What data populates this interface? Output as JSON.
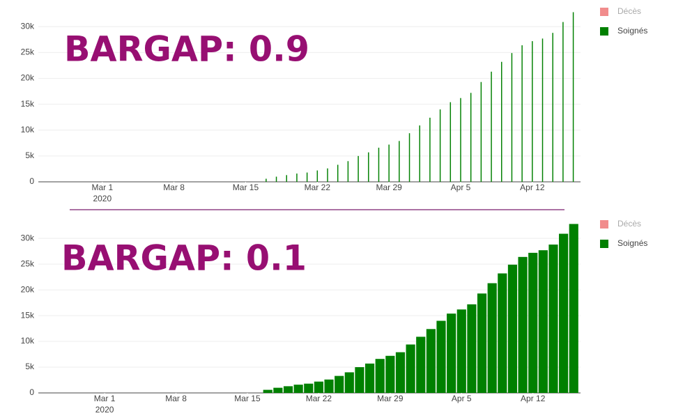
{
  "chart_data": [
    {
      "type": "bar",
      "annotation": "BARGAP: 0.9",
      "bargap": 0.9,
      "grid": true,
      "legend": "right",
      "x": [
        "2020-03-17",
        "2020-03-18",
        "2020-03-19",
        "2020-03-20",
        "2020-03-21",
        "2020-03-22",
        "2020-03-23",
        "2020-03-24",
        "2020-03-25",
        "2020-03-26",
        "2020-03-27",
        "2020-03-28",
        "2020-03-29",
        "2020-03-30",
        "2020-03-31",
        "2020-04-01",
        "2020-04-02",
        "2020-04-03",
        "2020-04-04",
        "2020-04-05",
        "2020-04-06",
        "2020-04-07",
        "2020-04-08",
        "2020-04-09",
        "2020-04-10",
        "2020-04-11",
        "2020-04-12",
        "2020-04-13",
        "2020-04-14",
        "2020-04-15",
        "2020-04-16"
      ],
      "series": [
        {
          "name": "Décès",
          "color": "#f08080",
          "visible": "legendonly",
          "values": [
            null,
            null,
            null,
            null,
            null,
            null,
            null,
            null,
            null,
            null,
            null,
            null,
            null,
            null,
            null,
            null,
            null,
            null,
            null,
            null,
            null,
            null,
            null,
            null,
            null,
            null,
            null,
            null,
            null,
            null,
            null
          ]
        },
        {
          "name": "Soignés",
          "color": "#008000",
          "values": [
            600,
            1000,
            1300,
            1600,
            1800,
            2200,
            2600,
            3300,
            4000,
            5000,
            5700,
            6600,
            7200,
            7900,
            9400,
            10900,
            12400,
            14000,
            15400,
            16200,
            17200,
            19300,
            21300,
            23200,
            24900,
            26400,
            27200,
            27700,
            28800,
            30900,
            32800
          ]
        }
      ],
      "xlim": [
        "2020-02-23T18:00",
        "2020-04-16T17:00"
      ],
      "xticks": [
        {
          "value": "2020-03-01",
          "label": "Mar 1\n2020"
        },
        {
          "value": "2020-03-08",
          "label": "Mar 8"
        },
        {
          "value": "2020-03-15",
          "label": "Mar 15"
        },
        {
          "value": "2020-03-22",
          "label": "Mar 22"
        },
        {
          "value": "2020-03-29",
          "label": "Mar 29"
        },
        {
          "value": "2020-04-05",
          "label": "Apr 5"
        },
        {
          "value": "2020-04-12",
          "label": "Apr 12"
        }
      ],
      "ylim": [
        0,
        33000
      ],
      "yticks": [
        0,
        {
          "value": 5000,
          "label": "5k"
        },
        {
          "value": 10000,
          "label": "10k"
        },
        {
          "value": 15000,
          "label": "15k"
        },
        {
          "value": 20000,
          "label": "20k"
        },
        {
          "value": 25000,
          "label": "25k"
        },
        {
          "value": 30000,
          "label": "30k"
        }
      ]
    },
    {
      "type": "bar",
      "annotation": "BARGAP: 0.1",
      "bargap": 0.1,
      "grid": true,
      "legend": "right",
      "x": [
        "2020-03-17",
        "2020-03-18",
        "2020-03-19",
        "2020-03-20",
        "2020-03-21",
        "2020-03-22",
        "2020-03-23",
        "2020-03-24",
        "2020-03-25",
        "2020-03-26",
        "2020-03-27",
        "2020-03-28",
        "2020-03-29",
        "2020-03-30",
        "2020-03-31",
        "2020-04-01",
        "2020-04-02",
        "2020-04-03",
        "2020-04-04",
        "2020-04-05",
        "2020-04-06",
        "2020-04-07",
        "2020-04-08",
        "2020-04-09",
        "2020-04-10",
        "2020-04-11",
        "2020-04-12",
        "2020-04-13",
        "2020-04-14",
        "2020-04-15",
        "2020-04-16"
      ],
      "series": [
        {
          "name": "Décès",
          "color": "#f08080",
          "visible": "legendonly",
          "values": [
            null,
            null,
            null,
            null,
            null,
            null,
            null,
            null,
            null,
            null,
            null,
            null,
            null,
            null,
            null,
            null,
            null,
            null,
            null,
            null,
            null,
            null,
            null,
            null,
            null,
            null,
            null,
            null,
            null,
            null,
            null
          ]
        },
        {
          "name": "Soignés",
          "color": "#008000",
          "values": [
            600,
            1000,
            1300,
            1600,
            1800,
            2200,
            2600,
            3300,
            4000,
            5000,
            5700,
            6600,
            7200,
            7900,
            9400,
            10900,
            12400,
            14000,
            15400,
            16200,
            17200,
            19300,
            21300,
            23200,
            24900,
            26400,
            27200,
            27700,
            28800,
            30900,
            32800
          ]
        }
      ],
      "xlim": [
        "2020-02-23T12:00",
        "2020-04-16T16:00"
      ],
      "xticks": [
        {
          "value": "2020-03-01",
          "label": "Mar 1\n2020"
        },
        {
          "value": "2020-03-08",
          "label": "Mar 8"
        },
        {
          "value": "2020-03-15",
          "label": "Mar 15"
        },
        {
          "value": "2020-03-22",
          "label": "Mar 22"
        },
        {
          "value": "2020-03-29",
          "label": "Mar 29"
        },
        {
          "value": "2020-04-05",
          "label": "Apr 5"
        },
        {
          "value": "2020-04-12",
          "label": "Apr 12"
        }
      ],
      "ylim": [
        0,
        33000
      ],
      "yticks": [
        0,
        {
          "value": 5000,
          "label": "5k"
        },
        {
          "value": 10000,
          "label": "10k"
        },
        {
          "value": 15000,
          "label": "15k"
        },
        {
          "value": 20000,
          "label": "20k"
        },
        {
          "value": 25000,
          "label": "25k"
        },
        {
          "value": 30000,
          "label": "30k"
        }
      ]
    }
  ]
}
